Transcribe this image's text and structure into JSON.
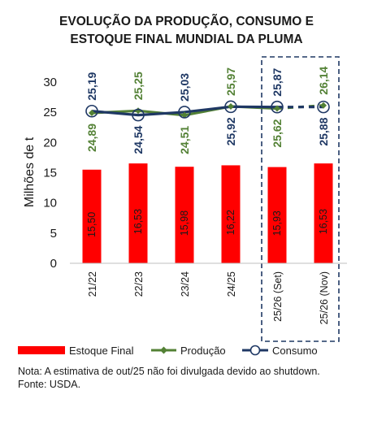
{
  "chart_data": {
    "type": "bar",
    "title_lines": [
      "EVOLUÇÃO DA PRODUÇÃO, CONSUMO E",
      "ESTOQUE FINAL MUNDIAL DA PLUMA"
    ],
    "ylabel": "Milhões de t",
    "ylim": [
      0,
      30
    ],
    "yticks": [
      "0",
      "5",
      "10",
      "15",
      "20",
      "25",
      "30"
    ],
    "categories": [
      "21/22",
      "22/23",
      "23/24",
      "24/25",
      "25/26 (Set)",
      "25/26 (Nov)"
    ],
    "series": [
      {
        "name": "Estoque Final",
        "kind": "bar",
        "color": "#ff0000",
        "values": [
          15.5,
          16.53,
          15.98,
          16.22,
          15.93,
          16.53
        ],
        "labels": [
          "15,50",
          "16,53",
          "15,98",
          "16,22",
          "15,93",
          "16,53"
        ]
      },
      {
        "name": "Produção",
        "kind": "line",
        "color": "#538135",
        "values": [
          24.89,
          25.25,
          24.51,
          25.97,
          25.62,
          26.14
        ],
        "labels": [
          "24,89",
          "25,25",
          "24,51",
          "25,97",
          "25,62",
          "26,14"
        ]
      },
      {
        "name": "Consumo",
        "kind": "line",
        "color": "#1f3864",
        "values": [
          25.19,
          24.54,
          25.03,
          25.92,
          25.87,
          25.88
        ],
        "labels": [
          "25,19",
          "24,54",
          "25,03",
          "25,92",
          "25,87",
          "25,88"
        ]
      }
    ],
    "legend_position": "bottom",
    "highlight": "25/26 projections boxed with dashed border",
    "grid": false
  },
  "note": [
    "Nota: A estimativa de out/25 não foi divulgada devido ao shutdown.",
    "Fonte: USDA."
  ]
}
